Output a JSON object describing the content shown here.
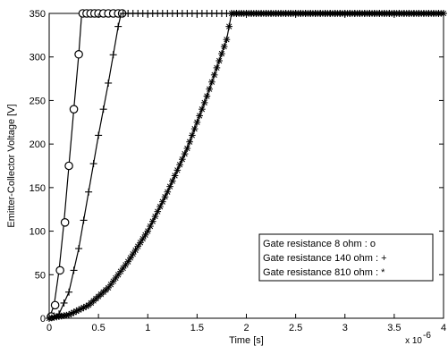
{
  "chart_data": {
    "type": "line",
    "title": "",
    "xlabel": "Time [s]",
    "ylabel": "Emitter-Collector Voltage [V]",
    "x_exponent_label": "x 10",
    "x_exponent_power": "-6",
    "xlim": [
      0,
      4
    ],
    "ylim": [
      0,
      350
    ],
    "x_ticks": [
      "0",
      "0.5",
      "1",
      "1.5",
      "2",
      "2.5",
      "3",
      "3.5",
      "4"
    ],
    "y_ticks": [
      "0",
      "50",
      "100",
      "150",
      "200",
      "250",
      "300",
      "350"
    ],
    "x_tick_values": [
      0,
      0.5,
      1,
      1.5,
      2,
      2.5,
      3,
      3.5,
      4
    ],
    "y_tick_values": [
      0,
      50,
      100,
      150,
      200,
      250,
      300,
      350
    ],
    "grid": false,
    "legend_position": "bottom-right",
    "line_color": "#000000",
    "series": [
      {
        "name": "Gate resistance   8 ohm : o",
        "marker": "circle",
        "x": [
          0,
          0.05,
          0.1,
          0.15,
          0.2,
          0.25,
          0.3,
          0.33,
          0.4,
          0.6,
          1.0,
          2.0,
          3.0,
          4.0
        ],
        "y": [
          0,
          15,
          55,
          110,
          175,
          240,
          303,
          350,
          350,
          350,
          350,
          350,
          350,
          350
        ],
        "marker_x": [
          0.02,
          0.06,
          0.11,
          0.16,
          0.2,
          0.25,
          0.3,
          0.34,
          0.38,
          0.42,
          0.46,
          0.5,
          0.55,
          0.6,
          0.65,
          0.7,
          0.74
        ],
        "marker_y": [
          2,
          15,
          55,
          110,
          175,
          240,
          303,
          350,
          350,
          350,
          350,
          350,
          350,
          350,
          350,
          350,
          350
        ]
      },
      {
        "name": "Gate resistance 140 ohm : +",
        "marker": "plus",
        "x": [
          0,
          0.1,
          0.2,
          0.3,
          0.4,
          0.5,
          0.6,
          0.7,
          0.73,
          1.0,
          2.0,
          3.0,
          4.0
        ],
        "y": [
          0,
          5,
          30,
          80,
          145,
          210,
          270,
          335,
          350,
          350,
          350,
          350,
          350
        ],
        "marker_every": 0.05
      },
      {
        "name": "Gate resistance 810 ohm : *",
        "marker": "star",
        "x": [
          0,
          0.2,
          0.4,
          0.6,
          0.8,
          1.0,
          1.2,
          1.4,
          1.6,
          1.8,
          1.85,
          2.0,
          3.0,
          4.0
        ],
        "y": [
          0,
          4,
          15,
          35,
          65,
          100,
          145,
          195,
          255,
          320,
          350,
          350,
          350,
          350
        ],
        "marker_every": 0.025
      }
    ]
  }
}
